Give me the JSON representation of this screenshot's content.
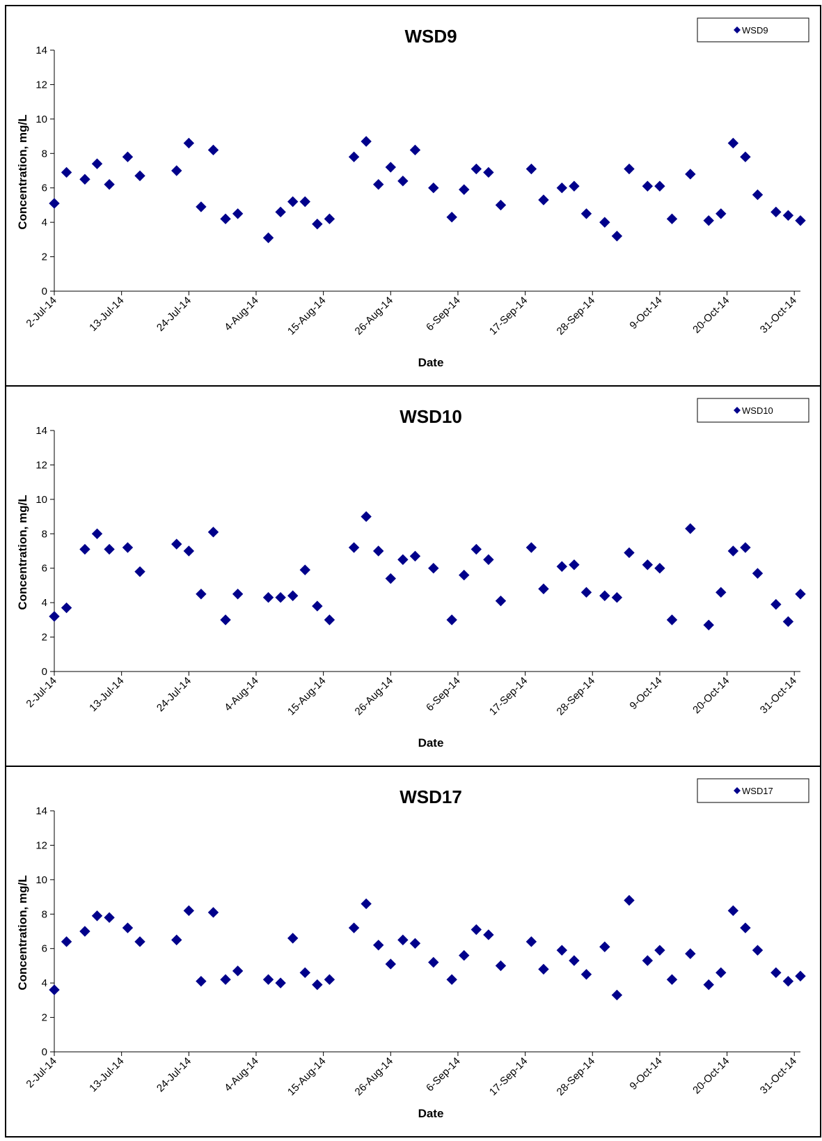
{
  "chart_data": [
    {
      "type": "scatter",
      "title": "WSD9",
      "xlabel": "Date",
      "ylabel": "Concentration, mg/L",
      "ylim": [
        0,
        14
      ],
      "yticks": [
        0,
        2,
        4,
        6,
        8,
        10,
        12,
        14
      ],
      "xlim": [
        "2014-07-02",
        "2014-11-01"
      ],
      "xtick_labels": [
        "2-Jul-14",
        "13-Jul-14",
        "24-Jul-14",
        "4-Aug-14",
        "15-Aug-14",
        "26-Aug-14",
        "6-Sep-14",
        "17-Sep-14",
        "28-Sep-14",
        "9-Oct-14",
        "20-Oct-14",
        "31-Oct-14"
      ],
      "xtick_dates": [
        "2014-07-02",
        "2014-07-13",
        "2014-07-24",
        "2014-08-04",
        "2014-08-15",
        "2014-08-26",
        "2014-09-06",
        "2014-09-17",
        "2014-09-28",
        "2014-10-09",
        "2014-10-20",
        "2014-10-31"
      ],
      "legend": "top-right",
      "grid": false,
      "series": [
        {
          "name": "WSD9",
          "color": "#00008B",
          "marker": "diamond",
          "x": [
            "2014-07-02",
            "2014-07-04",
            "2014-07-07",
            "2014-07-09",
            "2014-07-11",
            "2014-07-14",
            "2014-07-16",
            "2014-07-22",
            "2014-07-24",
            "2014-07-26",
            "2014-07-28",
            "2014-07-30",
            "2014-08-01",
            "2014-08-06",
            "2014-08-08",
            "2014-08-10",
            "2014-08-12",
            "2014-08-14",
            "2014-08-16",
            "2014-08-20",
            "2014-08-22",
            "2014-08-24",
            "2014-08-26",
            "2014-08-28",
            "2014-08-30",
            "2014-09-02",
            "2014-09-05",
            "2014-09-07",
            "2014-09-09",
            "2014-09-11",
            "2014-09-13",
            "2014-09-18",
            "2014-09-20",
            "2014-09-23",
            "2014-09-25",
            "2014-09-27",
            "2014-09-30",
            "2014-10-02",
            "2014-10-04",
            "2014-10-07",
            "2014-10-09",
            "2014-10-11",
            "2014-10-14",
            "2014-10-17",
            "2014-10-19",
            "2014-10-21",
            "2014-10-23",
            "2014-10-25",
            "2014-10-28",
            "2014-10-30",
            "2014-11-01"
          ],
          "y": [
            5.1,
            6.9,
            6.5,
            7.4,
            6.2,
            7.8,
            6.7,
            7.0,
            8.6,
            4.9,
            8.2,
            4.2,
            4.5,
            3.1,
            4.6,
            5.2,
            5.2,
            3.9,
            4.2,
            7.8,
            8.7,
            6.2,
            7.2,
            6.4,
            8.2,
            6.0,
            4.3,
            5.9,
            7.1,
            6.9,
            5.0,
            7.1,
            5.3,
            6.0,
            6.1,
            4.5,
            4.0,
            3.2,
            7.1,
            6.1,
            6.1,
            4.2,
            6.8,
            4.1,
            4.5,
            8.6,
            7.8,
            5.6,
            4.6,
            4.4,
            4.1
          ]
        }
      ]
    },
    {
      "type": "scatter",
      "title": "WSD10",
      "xlabel": "Date",
      "ylabel": "Concentration, mg/L",
      "ylim": [
        0,
        14
      ],
      "yticks": [
        0,
        2,
        4,
        6,
        8,
        10,
        12,
        14
      ],
      "xlim": [
        "2014-07-02",
        "2014-11-01"
      ],
      "xtick_labels": [
        "2-Jul-14",
        "13-Jul-14",
        "24-Jul-14",
        "4-Aug-14",
        "15-Aug-14",
        "26-Aug-14",
        "6-Sep-14",
        "17-Sep-14",
        "28-Sep-14",
        "9-Oct-14",
        "20-Oct-14",
        "31-Oct-14"
      ],
      "xtick_dates": [
        "2014-07-02",
        "2014-07-13",
        "2014-07-24",
        "2014-08-04",
        "2014-08-15",
        "2014-08-26",
        "2014-09-06",
        "2014-09-17",
        "2014-09-28",
        "2014-10-09",
        "2014-10-20",
        "2014-10-31"
      ],
      "legend": "top-right",
      "grid": false,
      "series": [
        {
          "name": "WSD10",
          "color": "#00008B",
          "marker": "diamond",
          "x": [
            "2014-07-02",
            "2014-07-04",
            "2014-07-07",
            "2014-07-09",
            "2014-07-11",
            "2014-07-14",
            "2014-07-16",
            "2014-07-22",
            "2014-07-24",
            "2014-07-26",
            "2014-07-28",
            "2014-07-30",
            "2014-08-01",
            "2014-08-06",
            "2014-08-08",
            "2014-08-10",
            "2014-08-12",
            "2014-08-14",
            "2014-08-16",
            "2014-08-20",
            "2014-08-22",
            "2014-08-24",
            "2014-08-26",
            "2014-08-28",
            "2014-08-30",
            "2014-09-02",
            "2014-09-05",
            "2014-09-07",
            "2014-09-09",
            "2014-09-11",
            "2014-09-13",
            "2014-09-18",
            "2014-09-20",
            "2014-09-23",
            "2014-09-25",
            "2014-09-27",
            "2014-09-30",
            "2014-10-02",
            "2014-10-04",
            "2014-10-07",
            "2014-10-09",
            "2014-10-11",
            "2014-10-14",
            "2014-10-17",
            "2014-10-19",
            "2014-10-21",
            "2014-10-23",
            "2014-10-25",
            "2014-10-28",
            "2014-10-30",
            "2014-11-01"
          ],
          "y": [
            3.2,
            3.7,
            7.1,
            8.0,
            7.1,
            7.2,
            5.8,
            7.4,
            7.0,
            4.5,
            8.1,
            3.0,
            4.5,
            4.3,
            4.3,
            4.4,
            5.9,
            3.8,
            3.0,
            7.2,
            9.0,
            7.0,
            5.4,
            6.5,
            6.7,
            6.0,
            3.0,
            5.6,
            7.1,
            6.5,
            4.1,
            7.2,
            4.8,
            6.1,
            6.2,
            4.6,
            4.4,
            4.3,
            6.9,
            6.2,
            6.0,
            3.0,
            8.3,
            2.7,
            4.6,
            7.0,
            7.2,
            5.7,
            3.9,
            2.9,
            4.5
          ]
        }
      ]
    },
    {
      "type": "scatter",
      "title": "WSD17",
      "xlabel": "Date",
      "ylabel": "Concentration, mg/L",
      "ylim": [
        0,
        14
      ],
      "yticks": [
        0,
        2,
        4,
        6,
        8,
        10,
        12,
        14
      ],
      "xlim": [
        "2014-07-02",
        "2014-11-01"
      ],
      "xtick_labels": [
        "2-Jul-14",
        "13-Jul-14",
        "24-Jul-14",
        "4-Aug-14",
        "15-Aug-14",
        "26-Aug-14",
        "6-Sep-14",
        "17-Sep-14",
        "28-Sep-14",
        "9-Oct-14",
        "20-Oct-14",
        "31-Oct-14"
      ],
      "xtick_dates": [
        "2014-07-02",
        "2014-07-13",
        "2014-07-24",
        "2014-08-04",
        "2014-08-15",
        "2014-08-26",
        "2014-09-06",
        "2014-09-17",
        "2014-09-28",
        "2014-10-09",
        "2014-10-20",
        "2014-10-31"
      ],
      "legend": "top-right",
      "grid": false,
      "series": [
        {
          "name": "WSD17",
          "color": "#00008B",
          "marker": "diamond",
          "x": [
            "2014-07-02",
            "2014-07-04",
            "2014-07-07",
            "2014-07-09",
            "2014-07-11",
            "2014-07-14",
            "2014-07-16",
            "2014-07-22",
            "2014-07-24",
            "2014-07-26",
            "2014-07-28",
            "2014-07-30",
            "2014-08-01",
            "2014-08-06",
            "2014-08-08",
            "2014-08-10",
            "2014-08-12",
            "2014-08-14",
            "2014-08-16",
            "2014-08-20",
            "2014-08-22",
            "2014-08-24",
            "2014-08-26",
            "2014-08-28",
            "2014-08-30",
            "2014-09-02",
            "2014-09-05",
            "2014-09-07",
            "2014-09-09",
            "2014-09-11",
            "2014-09-13",
            "2014-09-18",
            "2014-09-20",
            "2014-09-23",
            "2014-09-25",
            "2014-09-27",
            "2014-09-30",
            "2014-10-02",
            "2014-10-04",
            "2014-10-07",
            "2014-10-09",
            "2014-10-11",
            "2014-10-14",
            "2014-10-17",
            "2014-10-19",
            "2014-10-21",
            "2014-10-23",
            "2014-10-25",
            "2014-10-28",
            "2014-10-30",
            "2014-11-01"
          ],
          "y": [
            3.6,
            6.4,
            7.0,
            7.9,
            7.8,
            7.2,
            6.4,
            6.5,
            8.2,
            4.1,
            8.1,
            4.2,
            4.7,
            4.2,
            4.0,
            6.6,
            4.6,
            3.9,
            4.2,
            7.2,
            8.6,
            6.2,
            5.1,
            6.5,
            6.3,
            5.2,
            4.2,
            5.6,
            7.1,
            6.8,
            5.0,
            6.4,
            4.8,
            5.9,
            5.3,
            4.5,
            6.1,
            3.3,
            8.8,
            5.3,
            5.9,
            4.2,
            5.7,
            3.9,
            4.6,
            8.2,
            7.2,
            5.9,
            4.6,
            4.1,
            4.4
          ]
        }
      ]
    }
  ]
}
